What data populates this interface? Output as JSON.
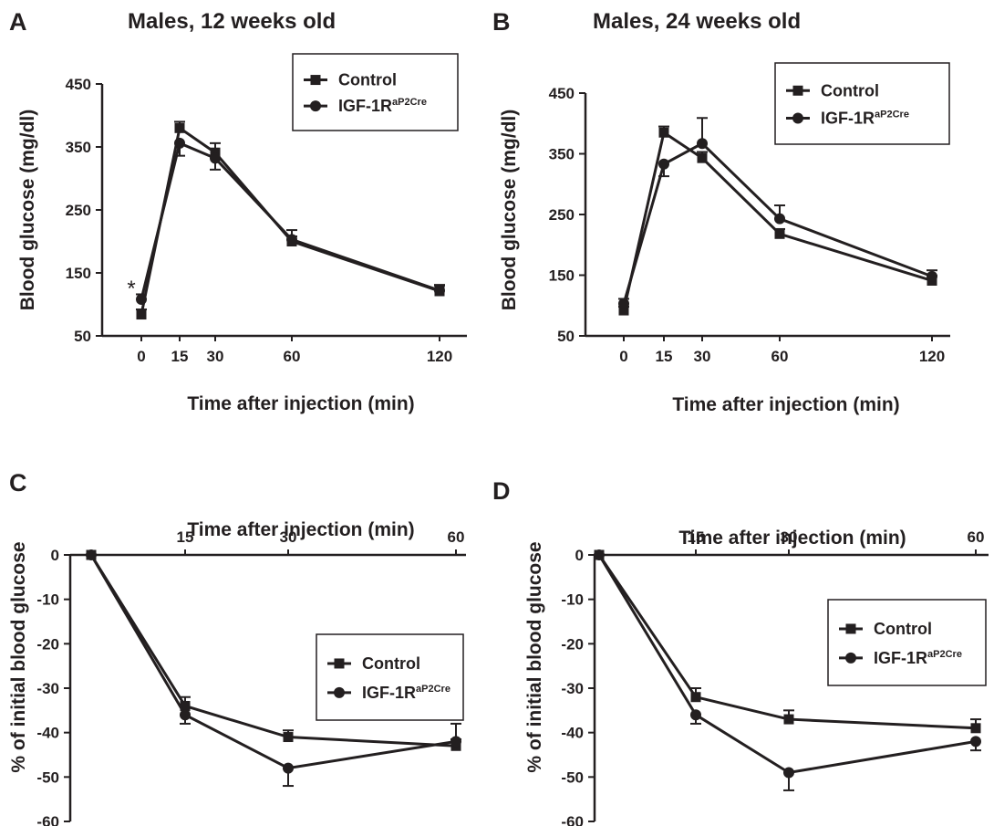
{
  "chart_data": [
    {
      "panel": "A",
      "type": "line",
      "title": "Males, 12 weeks old",
      "xlabel": "Time after injection (min)",
      "ylabel": "Blood glucose (mg/dl)",
      "x": [
        0,
        15,
        30,
        60,
        120
      ],
      "xticks": [
        "0",
        "15",
        "30",
        "60",
        "120"
      ],
      "yticks": [
        "450",
        "350",
        "250",
        "150",
        "50"
      ],
      "ylim": [
        50,
        450
      ],
      "series": [
        {
          "name": "Control",
          "marker": "square",
          "values": [
            84,
            380,
            341,
            200,
            121
          ],
          "errors": [
            8,
            10,
            15,
            8,
            10
          ]
        },
        {
          "name": "IGF-1R",
          "name_sup": "aP2Cre",
          "marker": "circle",
          "values": [
            108,
            356,
            332,
            203,
            122
          ],
          "errors": [
            8,
            20,
            18,
            15,
            8
          ]
        }
      ],
      "annotations": [
        {
          "text": "*",
          "x": 0
        }
      ],
      "legend": "top-right"
    },
    {
      "panel": "B",
      "type": "line",
      "title": "Males, 24 weeks old",
      "xlabel": "Time after injection (min)",
      "ylabel": "Blood glucose (mg/dl)",
      "x": [
        0,
        15,
        30,
        60,
        120
      ],
      "xticks": [
        "0",
        "15",
        "30",
        "60",
        "120"
      ],
      "yticks": [
        "450",
        "350",
        "250",
        "150"
      ],
      "ylim": [
        50,
        450
      ],
      "series": [
        {
          "name": "Control",
          "marker": "square",
          "values": [
            92,
            385,
            343,
            218,
            141
          ],
          "errors": [
            6,
            10,
            10,
            8,
            8
          ]
        },
        {
          "name": "IGF-1R",
          "name_sup": "aP2Cre",
          "marker": "circle",
          "values": [
            103,
            333,
            367,
            243,
            148
          ],
          "errors": [
            8,
            20,
            42,
            22,
            10
          ]
        }
      ],
      "extra_ytick": "50",
      "legend": "top-right"
    },
    {
      "panel": "C",
      "type": "line",
      "xlabel": "Time after injection (min)",
      "ylabel": "% of initial blood glucose",
      "x": [
        0,
        15,
        30,
        60
      ],
      "xticks": [
        "15",
        "30",
        "60"
      ],
      "yticks": [
        "0",
        "-10",
        "-20",
        "-30",
        "-40",
        "-50",
        "-60"
      ],
      "ylim": [
        -60,
        0
      ],
      "series": [
        {
          "name": "Control",
          "marker": "square",
          "values": [
            0,
            -34,
            -41,
            -43
          ],
          "errors": [
            0,
            2,
            1.5,
            1.5
          ]
        },
        {
          "name": "IGF-1R",
          "name_sup": "aP2Cre",
          "marker": "circle",
          "values": [
            0,
            -36,
            -48,
            -42
          ],
          "errors": [
            0,
            2,
            4,
            4
          ]
        }
      ],
      "legend": "right"
    },
    {
      "panel": "D",
      "type": "line",
      "xlabel": "Time after injection (min)",
      "ylabel": "% of initial blood glucose",
      "x": [
        0,
        15,
        30,
        60
      ],
      "xticks": [
        "15",
        "30",
        "60"
      ],
      "yticks": [
        "0",
        "-10",
        "-20",
        "-30",
        "-40",
        "-50",
        "-60"
      ],
      "ylim": [
        -60,
        0
      ],
      "series": [
        {
          "name": "Control",
          "marker": "square",
          "values": [
            0,
            -32,
            -37,
            -39
          ],
          "errors": [
            0,
            2,
            2,
            2
          ]
        },
        {
          "name": "IGF-1R",
          "name_sup": "aP2Cre",
          "marker": "circle",
          "values": [
            0,
            -36,
            -49,
            -42
          ],
          "errors": [
            0,
            2,
            4,
            2
          ]
        }
      ],
      "legend": "top-right"
    }
  ],
  "colors": {
    "ink": "#231f20",
    "background": "#ffffff"
  }
}
